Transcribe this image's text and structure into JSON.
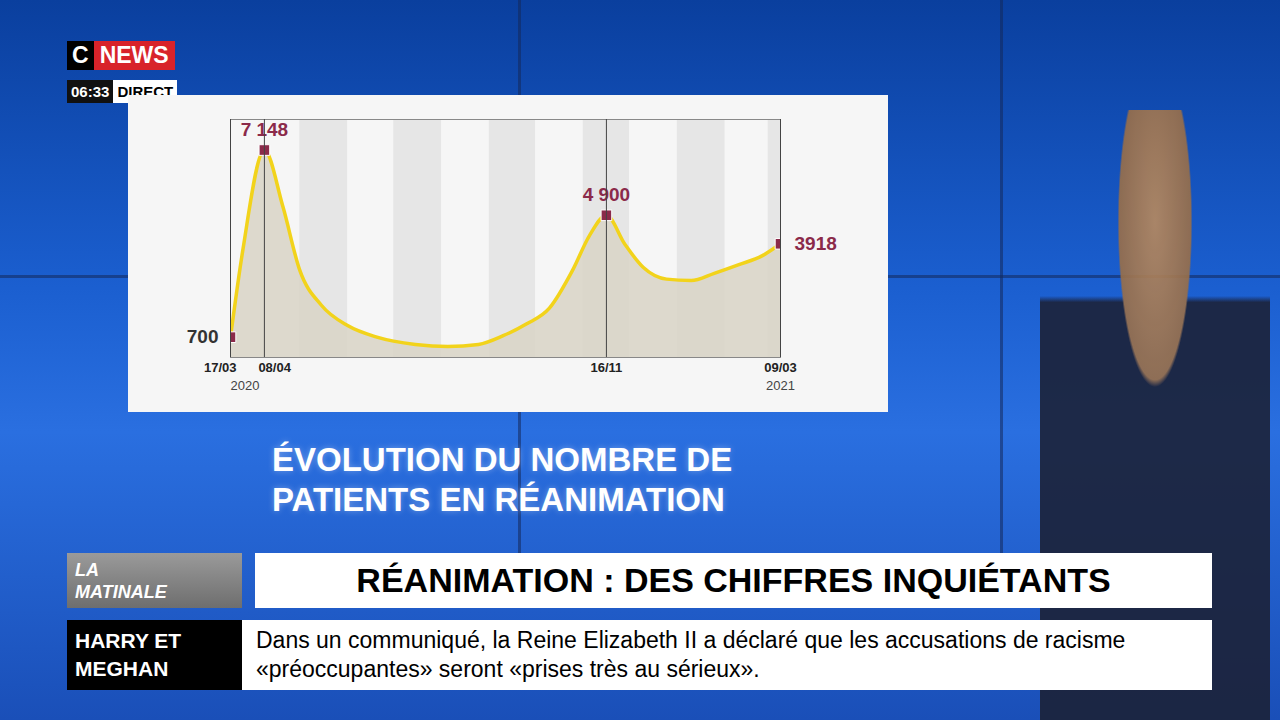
{
  "chart_data": {
    "type": "line",
    "title": "ÉVOLUTION DU NOMBRE DE PATIENTS EN RÉANIMATION",
    "x": [
      "2020-03-17",
      "2020-03-25",
      "2020-04-08",
      "2020-04-20",
      "2020-05-01",
      "2020-05-15",
      "2020-06-01",
      "2020-06-20",
      "2020-07-15",
      "2020-08-05",
      "2020-08-25",
      "2020-09-10",
      "2020-09-25",
      "2020-10-10",
      "2020-10-25",
      "2020-11-05",
      "2020-11-16",
      "2020-11-28",
      "2020-12-10",
      "2020-12-25",
      "2021-01-10",
      "2021-01-25",
      "2021-02-10",
      "2021-02-25",
      "2021-03-09"
    ],
    "values": [
      700,
      3700,
      7148,
      5200,
      3000,
      1800,
      1100,
      700,
      450,
      380,
      450,
      750,
      1150,
      1700,
      3000,
      4200,
      4900,
      3900,
      3100,
      2700,
      2650,
      2900,
      3200,
      3500,
      3918
    ],
    "value_labels": [
      "700",
      null,
      "7 148",
      null,
      null,
      null,
      null,
      null,
      null,
      null,
      null,
      null,
      null,
      null,
      null,
      null,
      "4 900",
      null,
      null,
      null,
      null,
      null,
      null,
      null,
      "3918"
    ],
    "data_labels": true,
    "color": "#f2d31b",
    "marker": "square",
    "xlim": [
      "2020-03-17",
      "2021-03-09"
    ],
    "xticks": [
      {
        "value": "2020-03-17",
        "label": "17/03"
      },
      {
        "value": "2020-04-08",
        "label": "08/04"
      },
      {
        "value": "2020-11-16",
        "label": "16/11"
      },
      {
        "value": "2021-03-09",
        "label": "09/03"
      }
    ],
    "annotations": [
      {
        "x": "2020-03-17",
        "text": "2020"
      },
      {
        "x": "2021-03-09",
        "text": "2021"
      }
    ],
    "ylim": [
      0,
      8200
    ],
    "yticks": [],
    "tick_labels": "x",
    "grid": false
  },
  "broadcast": {
    "logo": [
      "C",
      "NEWS"
    ],
    "time": "06:33",
    "live": "DIRECT",
    "show": "LA MATINALE",
    "headline": "RÉANIMATION : DES CHIFFRES INQUIÉTANTS",
    "ticker_label": "HARRY ET MEGHAN",
    "ticker_text": "Dans un communiqué, la Reine Elizabeth II a déclaré que les accusations de racisme «préoccupantes» seront «prises très au sérieux»."
  }
}
